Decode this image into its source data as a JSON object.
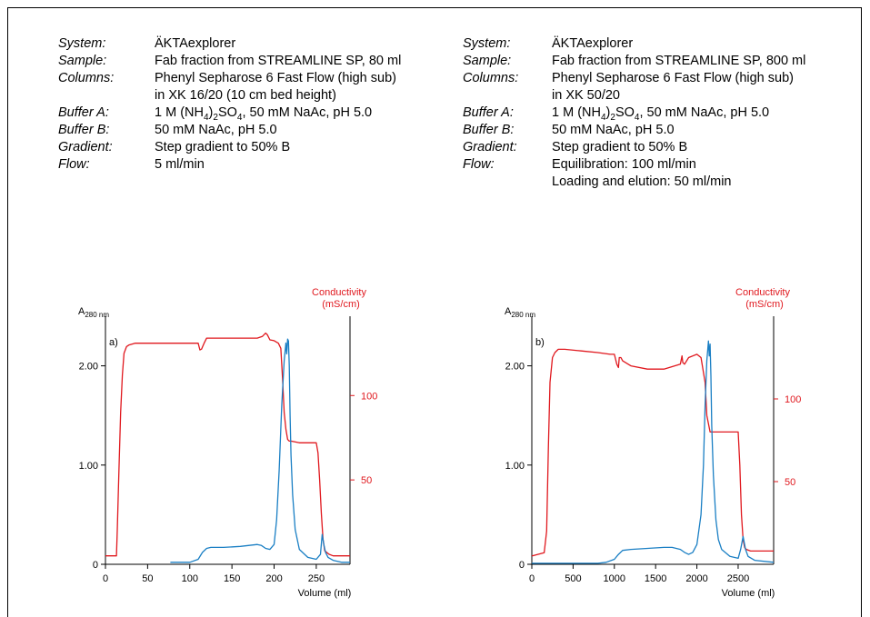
{
  "conditions": [
    {
      "rows": [
        {
          "label": "System:",
          "value": "ÄKTAexplorer"
        },
        {
          "label": "Sample:",
          "value": "Fab fraction from STREAMLINE SP, 80 ml"
        },
        {
          "label": "Columns:",
          "value": "Phenyl Sepharose 6 Fast Flow (high sub)"
        },
        {
          "label": "",
          "value": "in XK 16/20 (10 cm bed height)"
        },
        {
          "label": "Buffer A:",
          "value": "1 M (NH4)2SO4, 50 mM NaAc, pH 5.0"
        },
        {
          "label": "Buffer B:",
          "value": "50 mM NaAc, pH 5.0"
        },
        {
          "label": "Gradient:",
          "value": "Step gradient to 50% B"
        },
        {
          "label": "Flow:",
          "value": "5 ml/min"
        }
      ]
    },
    {
      "rows": [
        {
          "label": "System:",
          "value": "ÄKTAexplorer"
        },
        {
          "label": "Sample:",
          "value": "Fab fraction from STREAMLINE SP, 800 ml"
        },
        {
          "label": "Columns:",
          "value": "Phenyl Sepharose 6 Fast Flow (high sub)"
        },
        {
          "label": "",
          "value": "in XK 50/20"
        },
        {
          "label": "Buffer A:",
          "value": "1 M (NH4)2SO4, 50 mM NaAc, pH 5.0"
        },
        {
          "label": "Buffer B:",
          "value": "50 mM NaAc, pH 5.0"
        },
        {
          "label": "Gradient:",
          "value": "Step gradient to 50% B"
        },
        {
          "label": "Flow:",
          "value": "Equilibration: 100 ml/min"
        },
        {
          "label": "",
          "value": "Loading and elution: 50 ml/min"
        }
      ]
    }
  ],
  "colors": {
    "absorbance": "#1a7fc4",
    "conductivity": "#e0181e",
    "axis": "#000000"
  },
  "chart_data": [
    {
      "type": "line",
      "panel_label": "a)",
      "ylabel_left": "A280 nm",
      "ylabel_right": [
        "Conductivity",
        "(mS/cm)"
      ],
      "xlabel": "Volume (ml)",
      "xlim": [
        0,
        290
      ],
      "ylim_left": [
        0,
        2.5
      ],
      "ylim_right": [
        0,
        147
      ],
      "x_ticks": [
        0,
        50,
        100,
        150,
        200,
        250
      ],
      "y_left_ticks": [
        {
          "v": 0,
          "t": "0"
        },
        {
          "v": 1,
          "t": "1.00"
        },
        {
          "v": 2,
          "t": "2.00"
        }
      ],
      "y_right_ticks": [
        {
          "v": 50,
          "t": "50"
        },
        {
          "v": 100,
          "t": "100"
        }
      ],
      "series": [
        {
          "axis": "right",
          "x": [
            0,
            13,
            14,
            16,
            18,
            20,
            22,
            25,
            28,
            35,
            60,
            80,
            100,
            110,
            112,
            114,
            117,
            120,
            140,
            160,
            180,
            186,
            190,
            192,
            195,
            200,
            205,
            208,
            210,
            212,
            214,
            216,
            218,
            220,
            230,
            240,
            250,
            252,
            254,
            256,
            258,
            260,
            265,
            270,
            280,
            290
          ],
          "y": [
            5,
            5,
            20,
            55,
            90,
            112,
            125,
            129,
            130,
            131,
            131,
            131,
            131,
            131,
            127,
            127.5,
            131,
            134,
            134,
            134,
            134,
            135,
            137,
            136,
            133,
            132.5,
            131,
            128,
            110,
            90,
            80,
            74,
            73,
            73,
            72,
            72,
            72,
            66,
            50,
            30,
            15,
            8,
            6,
            5,
            5,
            5
          ]
        },
        {
          "axis": "left",
          "x": [
            77,
            100,
            110,
            115,
            120,
            125,
            140,
            160,
            180,
            185,
            190,
            195,
            200,
            203,
            206,
            209,
            212,
            214,
            215,
            216,
            217,
            218,
            219,
            220,
            222,
            225,
            230,
            240,
            250,
            255,
            257,
            259,
            261,
            264,
            270,
            280,
            290
          ],
          "y": [
            0.02,
            0.02,
            0.05,
            0.12,
            0.16,
            0.17,
            0.17,
            0.18,
            0.2,
            0.19,
            0.16,
            0.15,
            0.2,
            0.45,
            0.95,
            1.6,
            2.05,
            2.23,
            2.12,
            2.27,
            2.25,
            2.0,
            1.5,
            1.1,
            0.7,
            0.35,
            0.15,
            0.07,
            0.05,
            0.1,
            0.3,
            0.2,
            0.12,
            0.07,
            0.04,
            0.02,
            0.02
          ]
        }
      ]
    },
    {
      "type": "line",
      "panel_label": "b)",
      "ylabel_left": "A280 nm",
      "ylabel_right": [
        "Conductivity",
        "(mS/cm)"
      ],
      "xlabel": "Volume (ml)",
      "xlim": [
        0,
        2930
      ],
      "ylim_left": [
        0,
        2.5
      ],
      "ylim_right": [
        0,
        150
      ],
      "x_ticks": [
        0,
        500,
        1000,
        1500,
        2000,
        2500
      ],
      "y_left_ticks": [
        {
          "v": 0,
          "t": "0"
        },
        {
          "v": 1,
          "t": "1.00"
        },
        {
          "v": 2,
          "t": "2.00"
        }
      ],
      "y_right_ticks": [
        {
          "v": 50,
          "t": "50"
        },
        {
          "v": 100,
          "t": "100"
        }
      ],
      "series": [
        {
          "axis": "right",
          "x": [
            0,
            150,
            180,
            200,
            220,
            250,
            280,
            320,
            400,
            600,
            800,
            950,
            1000,
            1030,
            1050,
            1060,
            1080,
            1100,
            1200,
            1400,
            1600,
            1800,
            1820,
            1830,
            1850,
            1900,
            2000,
            2050,
            2100,
            2120,
            2140,
            2160,
            2180,
            2200,
            2400,
            2500,
            2520,
            2540,
            2560,
            2580,
            2600,
            2650,
            2930
          ],
          "y": [
            5,
            7,
            20,
            70,
            110,
            125,
            128,
            130,
            130,
            129,
            128,
            127,
            127,
            121,
            119,
            125,
            125,
            123,
            120,
            118,
            118,
            121,
            126,
            122,
            121,
            125,
            127,
            125,
            110,
            90,
            85,
            80,
            80,
            80,
            80,
            80,
            60,
            30,
            15,
            10,
            9,
            8,
            8
          ]
        },
        {
          "axis": "left",
          "x": [
            0,
            800,
            900,
            1000,
            1050,
            1100,
            1200,
            1400,
            1600,
            1700,
            1800,
            1850,
            1900,
            1950,
            2000,
            2050,
            2080,
            2100,
            2120,
            2140,
            2150,
            2160,
            2170,
            2180,
            2200,
            2230,
            2260,
            2300,
            2400,
            2500,
            2530,
            2560,
            2590,
            2620,
            2700,
            2930
          ],
          "y": [
            0.01,
            0.01,
            0.02,
            0.05,
            0.1,
            0.14,
            0.15,
            0.16,
            0.17,
            0.17,
            0.15,
            0.12,
            0.1,
            0.12,
            0.2,
            0.5,
            1.0,
            1.6,
            2.05,
            2.25,
            2.1,
            2.22,
            1.9,
            1.4,
            0.9,
            0.45,
            0.25,
            0.15,
            0.08,
            0.06,
            0.15,
            0.28,
            0.15,
            0.08,
            0.04,
            0.02
          ]
        }
      ]
    }
  ]
}
